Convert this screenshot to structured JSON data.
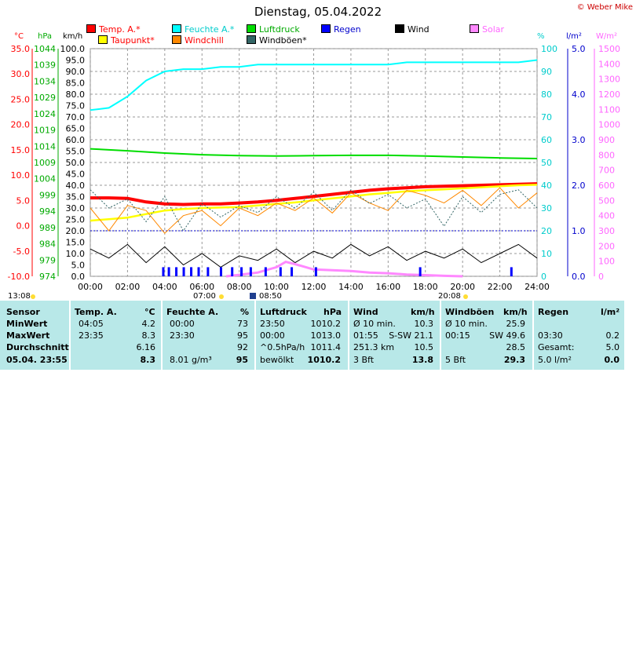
{
  "title": "Dienstag, 05.04.2022",
  "copyright": "© Weber Mike",
  "legend": [
    {
      "label": "Temp. A.*",
      "color": "#ff0000",
      "text_color": "#ff0000"
    },
    {
      "label": "Feuchte A.*",
      "color": "#00ffff",
      "text_color": "#00cccc"
    },
    {
      "label": "Luftdruck",
      "color": "#00dd00",
      "text_color": "#00aa00"
    },
    {
      "label": "Regen",
      "color": "#0000ff",
      "text_color": "#0000cc"
    },
    {
      "label": "Wind",
      "color": "#000000",
      "text_color": "#000000"
    },
    {
      "label": "Solar",
      "color": "#ff88ff",
      "text_color": "#ff66ff"
    },
    {
      "label": "Taupunkt*",
      "color": "#ffff00",
      "text_color": "#ff0000"
    },
    {
      "label": "Windchill",
      "color": "#ff8800",
      "text_color": "#ff0000"
    },
    {
      "label": "Windböen*",
      "color": "#336666",
      "text_color": "#000000"
    }
  ],
  "axis_units": {
    "temp": "°C",
    "press": "hPa",
    "wind": "km/h",
    "hum": "%",
    "rain": "l/m²",
    "solar": "W/m²"
  },
  "chart_data": {
    "type": "line",
    "x_ticks": [
      "00:00",
      "02:00",
      "04:00",
      "06:00",
      "08:00",
      "10:00",
      "12:00",
      "14:00",
      "16:00",
      "18:00",
      "20:00",
      "22:00",
      "24:00"
    ],
    "axes": {
      "temp_c": {
        "ticks": [
          "35.0",
          "30.0",
          "25.0",
          "20.0",
          "15.0",
          "10.0",
          "5.0",
          "0.0",
          "-5.0",
          "-10.0"
        ],
        "color": "#ff0000"
      },
      "pressure_hpa": {
        "ticks": [
          "1044",
          "1039",
          "1034",
          "1029",
          "1024",
          "1019",
          "1014",
          "1009",
          "1004",
          "999",
          "994",
          "989",
          "984",
          "979",
          "974"
        ],
        "color": "#00aa00"
      },
      "wind_kmh": {
        "ticks": [
          "100.0",
          "95.0",
          "90.0",
          "85.0",
          "80.0",
          "75.0",
          "70.0",
          "65.0",
          "60.0",
          "55.0",
          "50.0",
          "45.0",
          "40.0",
          "35.0",
          "30.0",
          "25.0",
          "20.0",
          "15.0",
          "10.0",
          "5.0",
          "0.0"
        ],
        "color": "#000000"
      },
      "humidity_pct": {
        "ticks": [
          "100",
          "90",
          "80",
          "70",
          "60",
          "50",
          "40",
          "30",
          "20",
          "10",
          "0"
        ],
        "color": "#00cccc"
      },
      "rain_lm2": {
        "ticks": [
          "5.0",
          "4.0",
          "3.0",
          "2.0",
          "1.0",
          "0.0"
        ],
        "color": "#0000cc"
      },
      "solar_wm2": {
        "ticks": [
          "1500",
          "1400",
          "1300",
          "1200",
          "1100",
          "1000",
          "900",
          "800",
          "700",
          "600",
          "500",
          "400",
          "300",
          "200",
          "100",
          "0"
        ],
        "color": "#ff66ff"
      }
    },
    "series": [
      {
        "name": "Temp. A.*",
        "color": "#ff0000",
        "unit": "°C",
        "x": [
          0,
          1,
          2,
          3,
          4,
          5,
          6,
          7,
          8,
          9,
          10,
          11,
          12,
          13,
          14,
          15,
          16,
          17,
          18,
          19,
          20,
          21,
          22,
          23,
          24
        ],
        "y": [
          5.5,
          5.5,
          5.4,
          4.7,
          4.3,
          4.2,
          4.3,
          4.3,
          4.5,
          4.7,
          5.0,
          5.4,
          5.8,
          6.2,
          6.6,
          7.0,
          7.3,
          7.5,
          7.7,
          7.8,
          7.9,
          8.0,
          8.1,
          8.2,
          8.3
        ]
      },
      {
        "name": "Taupunkt*",
        "color": "#ffff00",
        "unit": "°C",
        "x": [
          0,
          1,
          2,
          3,
          4,
          5,
          6,
          7,
          8,
          9,
          10,
          11,
          12,
          13,
          14,
          15,
          16,
          17,
          18,
          19,
          20,
          21,
          22,
          23,
          24
        ],
        "y": [
          1.0,
          1.3,
          1.6,
          2.3,
          3.0,
          3.3,
          3.5,
          3.6,
          3.7,
          4.0,
          4.3,
          4.6,
          5.0,
          5.4,
          5.8,
          6.2,
          6.5,
          6.8,
          7.0,
          7.2,
          7.4,
          7.6,
          7.8,
          8.0,
          8.1
        ]
      },
      {
        "name": "Feuchte A.*",
        "color": "#00ffff",
        "unit": "%",
        "x": [
          0,
          1,
          2,
          3,
          4,
          5,
          6,
          7,
          8,
          9,
          10,
          11,
          12,
          13,
          14,
          15,
          16,
          17,
          18,
          19,
          20,
          21,
          22,
          23,
          24
        ],
        "y": [
          73,
          74,
          79,
          86,
          90,
          91,
          91,
          92,
          92,
          93,
          93,
          93,
          93,
          93,
          93,
          93,
          93,
          94,
          94,
          94,
          94,
          94,
          94,
          94,
          95
        ]
      },
      {
        "name": "Luftdruck",
        "color": "#00dd00",
        "unit": "hPa",
        "x": [
          0,
          2,
          4,
          6,
          8,
          10,
          12,
          14,
          16,
          18,
          20,
          22,
          24
        ],
        "y": [
          1013.2,
          1012.6,
          1011.9,
          1011.4,
          1011.1,
          1011.0,
          1011.1,
          1011.2,
          1011.2,
          1011.0,
          1010.7,
          1010.4,
          1010.2
        ]
      },
      {
        "name": "Windchill",
        "color": "#ff8800",
        "unit": "°C",
        "x": [
          0,
          1,
          2,
          3,
          4,
          5,
          6,
          7,
          8,
          9,
          10,
          11,
          12,
          13,
          14,
          15,
          16,
          17,
          18,
          19,
          20,
          21,
          22,
          23,
          24
        ],
        "y": [
          3.5,
          -1.0,
          4.0,
          3.0,
          -1.5,
          2.0,
          3.0,
          0.0,
          3.5,
          2.0,
          4.5,
          3.0,
          5.5,
          2.5,
          6.5,
          4.5,
          3.0,
          7.0,
          6.0,
          4.5,
          7.0,
          4.0,
          7.5,
          3.5,
          6.5
        ]
      },
      {
        "name": "Wind",
        "color": "#000000",
        "unit": "km/h",
        "x": [
          0,
          1,
          2,
          3,
          4,
          5,
          6,
          7,
          8,
          9,
          10,
          11,
          12,
          13,
          14,
          15,
          16,
          17,
          18,
          19,
          20,
          21,
          22,
          23,
          24
        ],
        "y": [
          12,
          8,
          14,
          6,
          13,
          5,
          10,
          4,
          9,
          7,
          12,
          6,
          11,
          8,
          14,
          9,
          13,
          7,
          11,
          8,
          12,
          6,
          10,
          14,
          8
        ]
      },
      {
        "name": "Windböen*",
        "color": "#336666",
        "unit": "km/h",
        "x": [
          0,
          1,
          2,
          3,
          4,
          5,
          6,
          7,
          8,
          9,
          10,
          11,
          12,
          13,
          14,
          15,
          16,
          17,
          18,
          19,
          20,
          21,
          22,
          23,
          24
        ],
        "y": [
          38,
          30,
          34,
          24,
          35,
          20,
          32,
          26,
          31,
          28,
          35,
          30,
          37,
          29,
          38,
          32,
          36,
          30,
          34,
          22,
          35,
          28,
          36,
          38,
          30
        ]
      },
      {
        "name": "Solar",
        "color": "#ff88ff",
        "unit": "W/m²",
        "x": [
          7.3,
          8,
          9,
          10,
          10.5,
          11,
          12,
          13,
          14,
          15,
          16,
          17,
          18,
          19,
          20
        ],
        "y": [
          0,
          10,
          25,
          60,
          95,
          80,
          45,
          40,
          35,
          25,
          20,
          12,
          8,
          3,
          0
        ]
      },
      {
        "name": "Regen",
        "color": "#0000ff",
        "unit": "l/m²",
        "x": [
          3.9,
          4.2,
          4.6,
          5.0,
          5.4,
          5.8,
          6.3,
          7.0,
          7.6,
          8.1,
          8.6,
          9.4,
          10.2,
          10.8,
          12.1,
          17.7,
          22.6
        ],
        "y": [
          0.2,
          0.2,
          0.2,
          0.2,
          0.2,
          0.2,
          0.2,
          0.2,
          0.2,
          0.2,
          0.2,
          0.2,
          0.2,
          0.2,
          0.2,
          0.2,
          0.2
        ]
      }
    ],
    "sun_labels": [
      "13:08",
      "07:00",
      "08:50",
      "20:08"
    ],
    "ylim": {
      "temp": [
        -10,
        35
      ],
      "hum": [
        0,
        100
      ],
      "press": [
        974,
        1044
      ],
      "wind": [
        0,
        100
      ],
      "solar": [
        0,
        1500
      ],
      "rain": [
        0,
        5
      ]
    }
  },
  "stats": {
    "headers": {
      "sensor": "Sensor",
      "temp": "Temp. A.",
      "temp_unit": "°C",
      "hum": "Feuchte A.",
      "hum_unit": "%",
      "press": "Luftdruck",
      "press_unit": "hPa",
      "wind": "Wind",
      "wind_unit": "km/h",
      "gust": "Windböen",
      "gust_unit": "km/h",
      "rain": "Regen",
      "rain_unit": "l/m²"
    },
    "row_labels": [
      "MinWert",
      "MaxWert",
      "Durchschnitt",
      "05.04. 23:55"
    ],
    "temp": [
      [
        "04:05",
        "4.2"
      ],
      [
        "23:35",
        "8.3"
      ],
      [
        "",
        "6.16"
      ],
      [
        "",
        "8.3"
      ]
    ],
    "hum": [
      [
        "00:00",
        "73"
      ],
      [
        "23:30",
        "95"
      ],
      [
        "",
        "92"
      ],
      [
        "8.01 g/m³",
        "95"
      ]
    ],
    "press": [
      [
        "23:50",
        "1010.2"
      ],
      [
        "00:00",
        "1013.0"
      ],
      [
        "^0.5hPa/h",
        "1011.4"
      ],
      [
        "bewölkt",
        "1010.2"
      ]
    ],
    "wind": [
      [
        "Ø 10 min.",
        "10.3"
      ],
      [
        "01:55",
        "S-SW 21.1"
      ],
      [
        "251.3 km",
        "10.5"
      ],
      [
        "3 Bft",
        "13.8"
      ]
    ],
    "gust": [
      [
        "Ø 10 min.",
        "25.9"
      ],
      [
        "00:15",
        "SW 49.6"
      ],
      [
        "",
        "28.5"
      ],
      [
        "5 Bft",
        "29.3"
      ]
    ],
    "rain": [
      [
        "",
        ""
      ],
      [
        "03:30",
        "0.2"
      ],
      [
        "Gesamt:",
        "5.0"
      ],
      [
        "5.0 l/m²",
        "0.0"
      ]
    ]
  }
}
